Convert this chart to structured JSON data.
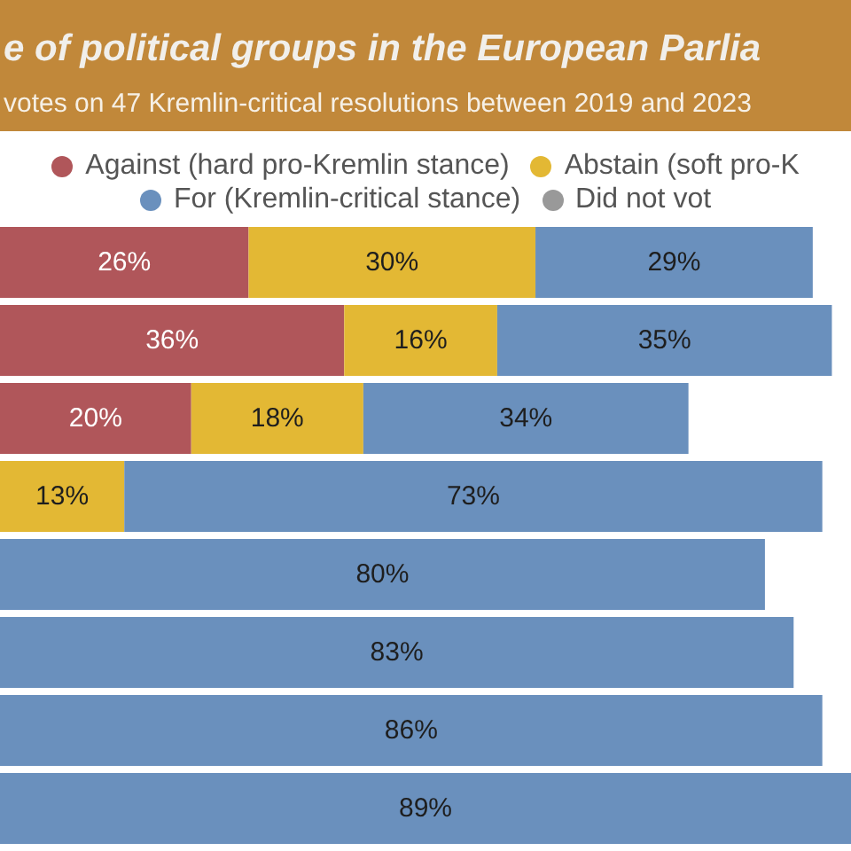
{
  "chart_data": {
    "type": "bar",
    "title": "e of political groups in the European Parlia",
    "subtitle": "votes on 47 Kremlin-critical resolutions between 2019 and 2023",
    "categories": [
      null,
      null,
      null,
      null,
      null,
      null,
      null,
      null
    ],
    "orientation": "horizontal",
    "stacked": true,
    "legend": "top",
    "series": [
      {
        "name": "Against (hard pro-Kremlin stance)",
        "color": "#b0565a",
        "values": [
          26,
          36,
          20,
          null,
          null,
          null,
          null,
          null
        ],
        "value_labels": [
          "26%",
          "36%",
          "20%",
          null,
          null,
          null,
          null,
          null
        ]
      },
      {
        "name": "Abstain (soft pro-K",
        "color": "#e3b834",
        "values": [
          30,
          16,
          18,
          13,
          null,
          null,
          null,
          null
        ],
        "value_labels": [
          "30%",
          "16%",
          "18%",
          "13%",
          null,
          null,
          null,
          null
        ]
      },
      {
        "name": "For (Kremlin-critical stance)",
        "color": "#6a90bd",
        "values": [
          29,
          35,
          34,
          73,
          80,
          83,
          86,
          89
        ],
        "value_labels": [
          "29%",
          "35%",
          "34%",
          "73%",
          "80%",
          "83%",
          "86%",
          "89%"
        ]
      },
      {
        "name": "Did not vot",
        "color": "#999999",
        "values": [
          null,
          null,
          null,
          null,
          null,
          null,
          null,
          null
        ]
      }
    ]
  }
}
